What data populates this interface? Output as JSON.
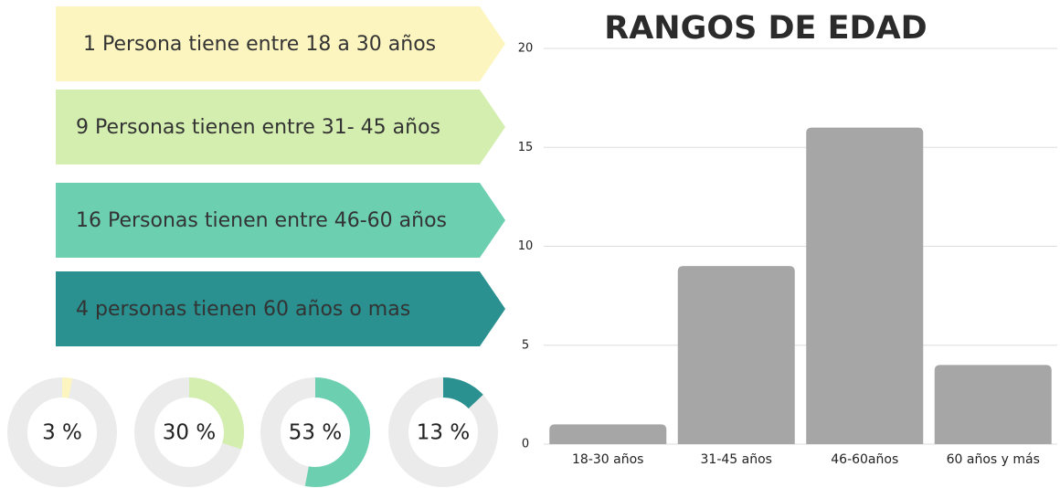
{
  "banners": [
    {
      "text": "1 Persona tiene entre 18 a 30 años",
      "color": "#fdf5c0"
    },
    {
      "text": "9 Personas tienen entre 31- 45 años",
      "color": "#d4eeb0"
    },
    {
      "text": "16 Personas tienen entre 46-60 años",
      "color": "#6ccfb0"
    },
    {
      "text": "4 personas tienen 60 años o mas",
      "color": "#2a9090"
    }
  ],
  "chart_data": [
    {
      "type": "bar",
      "title": "RANGOS DE EDAD",
      "categories": [
        "18-30 años",
        "31-45 años",
        "46-60años",
        "60 años y más"
      ],
      "values": [
        1,
        9,
        16,
        4
      ],
      "color": "#a6a6a6",
      "ylim": [
        0,
        20
      ],
      "yticks": [
        0,
        5,
        10,
        15,
        20
      ],
      "grid": true
    },
    {
      "type": "donut",
      "values": [
        3,
        30,
        53,
        13
      ],
      "value_labels": [
        "3 %",
        "30 %",
        "53 %",
        "13 %"
      ],
      "colors": [
        "#fdf5c0",
        "#d4eeb0",
        "#6ccfb0",
        "#2a9090"
      ],
      "track_color": "#ebebeb"
    }
  ]
}
